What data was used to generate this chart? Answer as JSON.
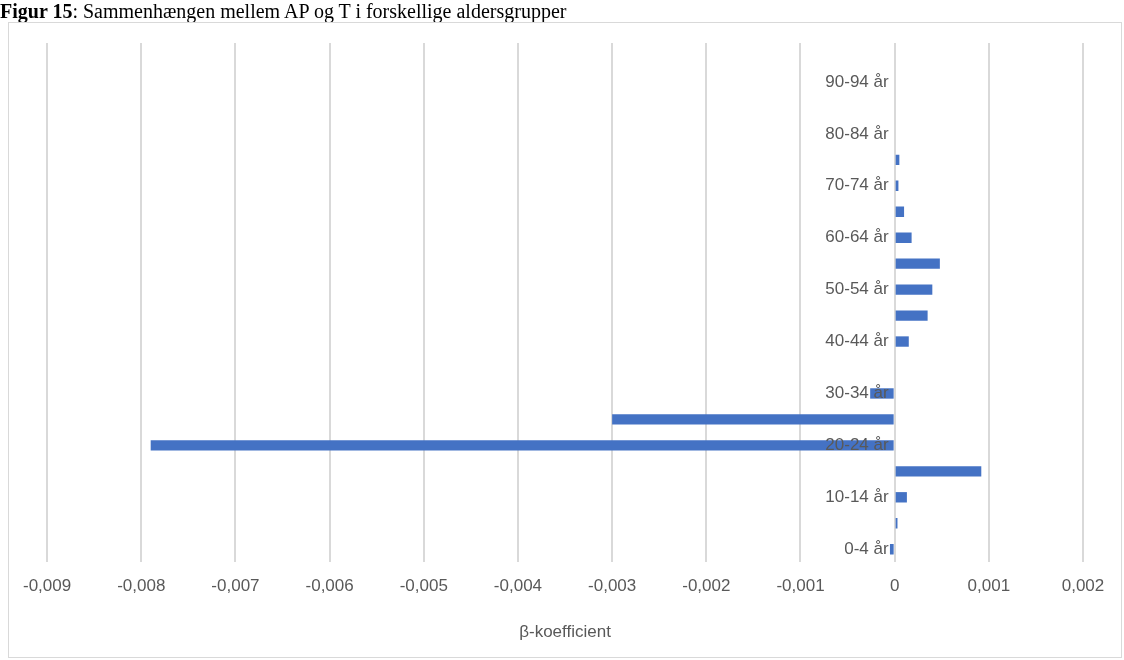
{
  "chart_data": {
    "type": "bar",
    "orientation": "horizontal",
    "title": "Figur 15: Sammenhængen mellem AP og T i forskellige aldersgrupper",
    "xlabel": "β-koefficient",
    "categories": [
      null,
      "90-94 år",
      null,
      "80-84 år",
      null,
      "70-74 år",
      null,
      "60-64 år",
      null,
      "50-54 år",
      null,
      "40-44 år",
      null,
      "30-34 år",
      null,
      "20-24 år",
      null,
      "10-14 år",
      null,
      "0-4 år"
    ],
    "values": [
      0,
      0,
      0,
      0,
      5e-05,
      4e-05,
      0.0001,
      0.00018,
      0.00048,
      0.0004,
      0.00035,
      0.00015,
      0,
      -0.00026,
      -0.003,
      -0.0079,
      0.00092,
      0.00013,
      3e-05,
      -5e-05
    ],
    "color": "#4472c4",
    "xlim": [
      -0.009,
      0.002
    ],
    "xticks": [
      {
        "value": -0.009,
        "label": "-0,009"
      },
      {
        "value": -0.008,
        "label": "-0,008"
      },
      {
        "value": -0.007,
        "label": "-0,007"
      },
      {
        "value": -0.006,
        "label": "-0,006"
      },
      {
        "value": -0.005,
        "label": "-0,005"
      },
      {
        "value": -0.004,
        "label": "-0,004"
      },
      {
        "value": -0.003,
        "label": "-0,003"
      },
      {
        "value": -0.002,
        "label": "-0,002"
      },
      {
        "value": -0.001,
        "label": "-0,001"
      },
      {
        "value": 0,
        "label": "0"
      },
      {
        "value": 0.001,
        "label": "0,001"
      },
      {
        "value": 0.002,
        "label": "0,002"
      }
    ],
    "grid": "x",
    "legend": false
  }
}
